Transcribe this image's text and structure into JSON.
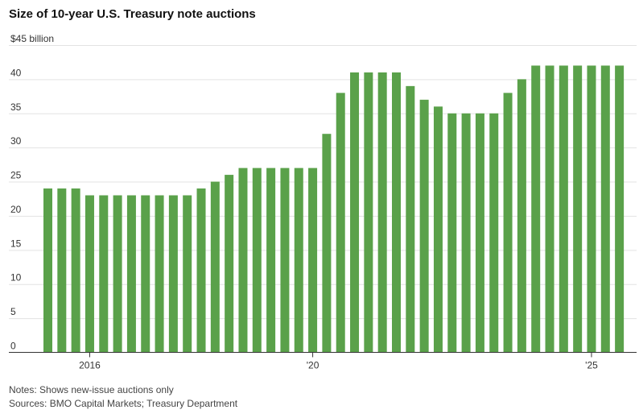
{
  "chart_data": {
    "type": "bar",
    "title": "Size of 10-year U.S. Treasury note auctions",
    "ylabel": "$45 billion",
    "ylim": [
      0,
      45
    ],
    "yticks": [
      0,
      5,
      10,
      15,
      20,
      25,
      30,
      35,
      40
    ],
    "y_top_label": "$45 billion",
    "xticks": [
      {
        "label": "2016",
        "index": 3
      },
      {
        "label": "'20",
        "index": 19
      },
      {
        "label": "'25",
        "index": 39
      }
    ],
    "grid": true,
    "bar_color": "#5aa14a",
    "values": [
      24,
      24,
      24,
      23,
      23,
      23,
      23,
      23,
      23,
      23,
      23,
      24,
      25,
      26,
      27,
      27,
      27,
      27,
      27,
      27,
      32,
      38,
      41,
      41,
      41,
      41,
      39,
      37,
      36,
      35,
      35,
      35,
      35,
      38,
      40,
      42,
      42,
      42,
      42,
      42,
      42,
      42
    ]
  },
  "notes": {
    "note": "Notes: Shows new-issue auctions only",
    "sources": "Sources: BMO Capital Markets; Treasury Department"
  }
}
